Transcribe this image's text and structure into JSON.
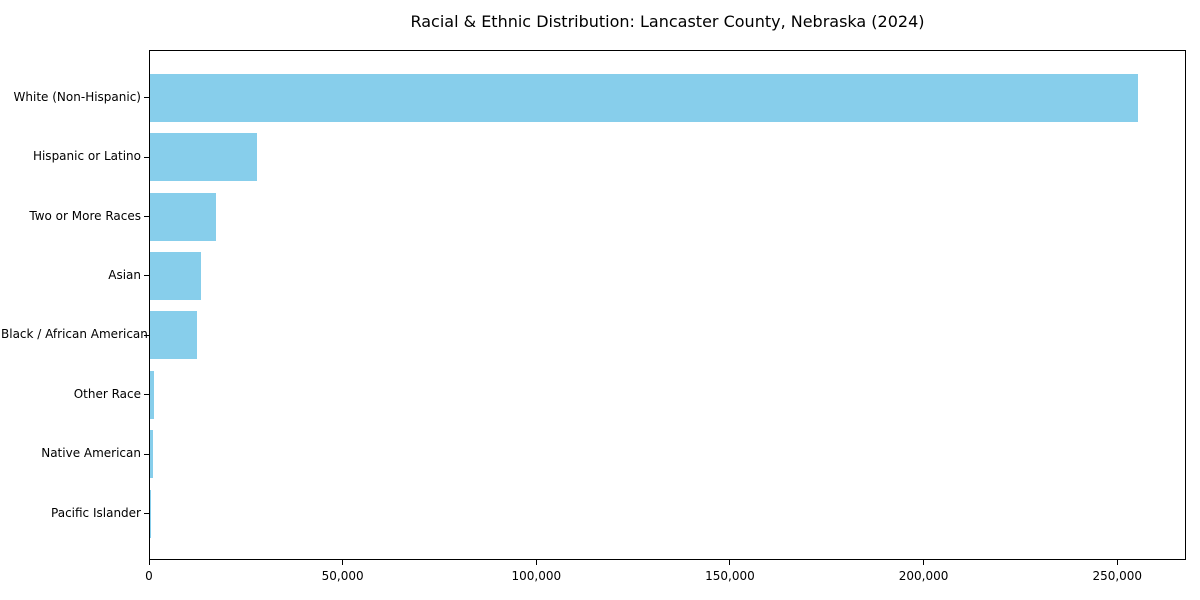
{
  "chart_data": {
    "type": "bar",
    "orientation": "horizontal",
    "title": "Racial & Ethnic Distribution: Lancaster County, Nebraska (2024)",
    "categories": [
      "White (Non-Hispanic)",
      "Hispanic or Latino",
      "Two or More Races",
      "Asian",
      "Black / African American",
      "Other Race",
      "Native American",
      "Pacific Islander"
    ],
    "values": [
      255000,
      27500,
      17000,
      13200,
      12100,
      950,
      900,
      200
    ],
    "xlabel": "",
    "ylabel": "",
    "xlim": [
      0,
      267750
    ],
    "x_ticks": [
      {
        "value": 0,
        "label": "0"
      },
      {
        "value": 50000,
        "label": "50,000"
      },
      {
        "value": 100000,
        "label": "100,000"
      },
      {
        "value": 150000,
        "label": "150,000"
      },
      {
        "value": 200000,
        "label": "200,000"
      },
      {
        "value": 250000,
        "label": "250,000"
      }
    ],
    "bar_color": "#87CEEB",
    "axis_color": "#000000",
    "text_color": "#000000",
    "grid": false,
    "legend": null
  }
}
